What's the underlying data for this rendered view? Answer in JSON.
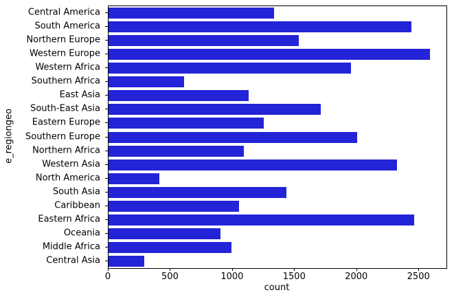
{
  "chart_data": {
    "type": "bar",
    "orientation": "horizontal",
    "title": "",
    "xlabel": "count",
    "ylabel": "e_regiongeo",
    "categories": [
      "Central America",
      "South America",
      "Northern Europe",
      "Western Europe",
      "Western Africa",
      "Southern Africa",
      "East Asia",
      "South-East Asia",
      "Eastern Europe",
      "Southern Europe",
      "Northern Africa",
      "Western Asia",
      "North America",
      "South Asia",
      "Caribbean",
      "Eastern Africa",
      "Oceania",
      "Middle Africa",
      "Central Asia"
    ],
    "values": [
      1330,
      2440,
      1530,
      2590,
      1950,
      610,
      1130,
      1710,
      1250,
      2000,
      1090,
      2320,
      410,
      1430,
      1050,
      2460,
      900,
      990,
      290
    ],
    "xticks": [
      0,
      500,
      1000,
      1500,
      2000,
      2500
    ],
    "xlim": [
      0,
      2720
    ],
    "grid": false,
    "legend": null,
    "bar_color": "#2323d7",
    "spine_color": "#000000",
    "text_color": "#000000"
  }
}
